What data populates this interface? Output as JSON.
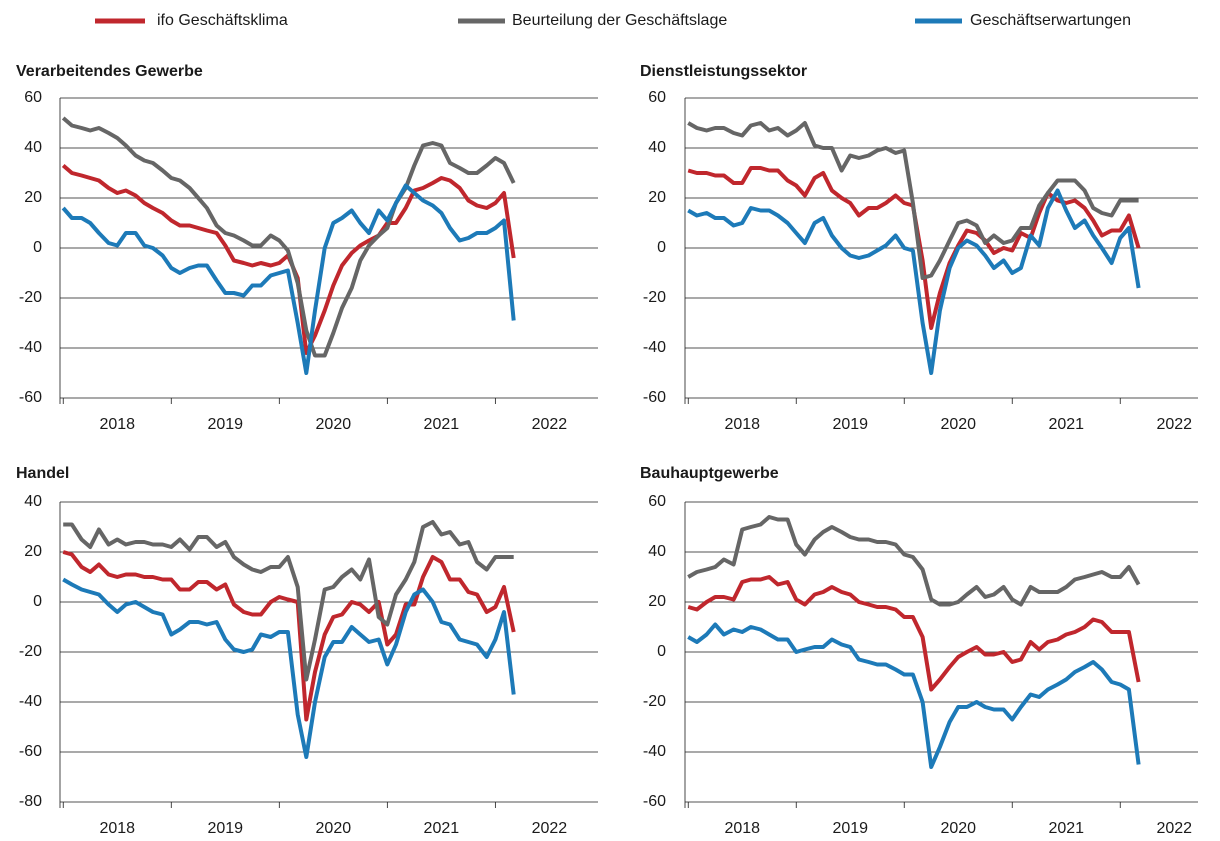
{
  "chart_data": [
    {
      "type": "line",
      "title": "Verarbeitendes Gewerbe",
      "x": [
        2018,
        2018.08,
        2018.17,
        2018.25,
        2018.33,
        2018.42,
        2018.5,
        2018.58,
        2018.67,
        2018.75,
        2018.83,
        2018.92,
        2019,
        2019.08,
        2019.17,
        2019.25,
        2019.33,
        2019.42,
        2019.5,
        2019.58,
        2019.67,
        2019.75,
        2019.83,
        2019.92,
        2020,
        2020.08,
        2020.17,
        2020.25,
        2020.33,
        2020.42,
        2020.5,
        2020.58,
        2020.67,
        2020.75,
        2020.83,
        2020.92,
        2021,
        2021.08,
        2021.17,
        2021.25,
        2021.33,
        2021.42,
        2021.5,
        2021.58,
        2021.67,
        2021.75,
        2021.83,
        2021.92,
        2022,
        2022.08,
        2022.17
      ],
      "xlim": [
        2017.97,
        2022.95
      ],
      "xticks": [
        2018,
        2019,
        2020,
        2021,
        2022
      ],
      "ylim": [
        -60,
        60
      ],
      "yticks": [
        -60,
        -40,
        -20,
        0,
        20,
        40,
        60
      ],
      "grid": true,
      "series": [
        {
          "name": "ifo Geschäftsklima",
          "color": "#c0272d",
          "values": [
            33,
            30,
            29,
            28,
            27,
            24,
            22,
            23,
            21,
            18,
            16,
            14,
            11,
            9,
            9,
            8,
            7,
            6,
            1,
            -5,
            -6,
            -7,
            -6,
            -7,
            -6,
            -3,
            -12,
            -42,
            -35,
            -25,
            -15,
            -7,
            -2,
            1,
            3,
            5,
            10,
            10,
            16,
            23,
            24,
            26,
            28,
            27,
            24,
            19,
            17,
            16,
            18,
            22,
            -4
          ]
        },
        {
          "name": "Beurteilung der Geschäftslage",
          "color": "#666666",
          "values": [
            52,
            49,
            48,
            47,
            48,
            46,
            44,
            41,
            37,
            35,
            34,
            31,
            28,
            27,
            24,
            20,
            16,
            9,
            6,
            5,
            3,
            1,
            1,
            5,
            3,
            -1,
            -14,
            -33,
            -43,
            -43,
            -34,
            -24,
            -16,
            -5,
            1,
            5,
            8,
            18,
            24,
            33,
            41,
            42,
            41,
            34,
            32,
            30,
            30,
            33,
            36,
            34,
            26
          ]
        },
        {
          "name": "Geschäftserwartungen",
          "color": "#1d7ab8",
          "values": [
            16,
            12,
            12,
            10,
            6,
            2,
            1,
            6,
            6,
            1,
            0,
            -3,
            -8,
            -10,
            -8,
            -7,
            -7,
            -13,
            -18,
            -18,
            -19,
            -15,
            -15,
            -11,
            -10,
            -9,
            -30,
            -50,
            -25,
            0,
            10,
            12,
            15,
            10,
            6,
            15,
            11,
            18,
            25,
            22,
            19,
            17,
            14,
            8,
            3,
            4,
            6,
            6,
            8,
            11,
            -29
          ]
        }
      ]
    },
    {
      "type": "line",
      "title": "Dienstleistungssektor",
      "x": [
        2018,
        2018.08,
        2018.17,
        2018.25,
        2018.33,
        2018.42,
        2018.5,
        2018.58,
        2018.67,
        2018.75,
        2018.83,
        2018.92,
        2019,
        2019.08,
        2019.17,
        2019.25,
        2019.33,
        2019.42,
        2019.5,
        2019.58,
        2019.67,
        2019.75,
        2019.83,
        2019.92,
        2020,
        2020.08,
        2020.17,
        2020.25,
        2020.33,
        2020.42,
        2020.5,
        2020.58,
        2020.67,
        2020.75,
        2020.83,
        2020.92,
        2021,
        2021.08,
        2021.17,
        2021.25,
        2021.33,
        2021.42,
        2021.5,
        2021.58,
        2021.67,
        2021.75,
        2021.83,
        2021.92,
        2022,
        2022.08,
        2022.17
      ],
      "xlim": [
        2017.97,
        2022.72
      ],
      "xticks": [
        2018,
        2019,
        2020,
        2021,
        2022
      ],
      "ylim": [
        -60,
        60
      ],
      "yticks": [
        -60,
        -40,
        -20,
        0,
        20,
        40,
        60
      ],
      "grid": true,
      "series": [
        {
          "name": "ifo Geschäftsklima",
          "color": "#c0272d",
          "values": [
            31,
            30,
            30,
            29,
            29,
            26,
            26,
            32,
            32,
            31,
            31,
            27,
            25,
            21,
            28,
            30,
            23,
            20,
            18,
            13,
            16,
            16,
            18,
            21,
            18,
            17,
            -5,
            -32,
            -18,
            -6,
            1,
            7,
            6,
            3,
            -2,
            0,
            -1,
            6,
            4,
            14,
            22,
            19,
            18,
            19,
            16,
            11,
            5,
            7,
            7,
            13,
            0
          ]
        },
        {
          "name": "Beurteilung der Geschäftslage",
          "color": "#666666",
          "values": [
            50,
            48,
            47,
            48,
            48,
            46,
            45,
            49,
            50,
            47,
            48,
            45,
            47,
            50,
            41,
            40,
            40,
            31,
            37,
            36,
            37,
            39,
            40,
            38,
            39,
            18,
            -12,
            -11,
            -5,
            3,
            10,
            11,
            9,
            2,
            5,
            2,
            3,
            8,
            8,
            17,
            22,
            27,
            27,
            27,
            23,
            16,
            14,
            13,
            19,
            19,
            19
          ]
        },
        {
          "name": "Geschäftserwartungen",
          "color": "#1d7ab8",
          "values": [
            15,
            13,
            14,
            12,
            12,
            9,
            10,
            16,
            15,
            15,
            13,
            10,
            6,
            2,
            10,
            12,
            5,
            0,
            -3,
            -4,
            -3,
            -1,
            1,
            5,
            0,
            -1,
            -30,
            -50,
            -25,
            -8,
            0,
            3,
            1,
            -3,
            -8,
            -5,
            -10,
            -8,
            5,
            1,
            16,
            23,
            15,
            8,
            11,
            5,
            0,
            -6,
            4,
            8,
            -16
          ]
        }
      ]
    },
    {
      "type": "line",
      "title": "Handel",
      "x": [
        2018,
        2018.08,
        2018.17,
        2018.25,
        2018.33,
        2018.42,
        2018.5,
        2018.58,
        2018.67,
        2018.75,
        2018.83,
        2018.92,
        2019,
        2019.08,
        2019.17,
        2019.25,
        2019.33,
        2019.42,
        2019.5,
        2019.58,
        2019.67,
        2019.75,
        2019.83,
        2019.92,
        2020,
        2020.08,
        2020.17,
        2020.25,
        2020.33,
        2020.42,
        2020.5,
        2020.58,
        2020.67,
        2020.75,
        2020.83,
        2020.92,
        2021,
        2021.08,
        2021.17,
        2021.25,
        2021.33,
        2021.42,
        2021.5,
        2021.58,
        2021.67,
        2021.75,
        2021.83,
        2021.92,
        2022,
        2022.08,
        2022.17
      ],
      "xlim": [
        2017.97,
        2022.95
      ],
      "xticks": [
        2018,
        2019,
        2020,
        2021,
        2022
      ],
      "ylim": [
        -80,
        40
      ],
      "yticks": [
        -80,
        -60,
        -40,
        -20,
        0,
        20,
        40
      ],
      "grid": true,
      "series": [
        {
          "name": "ifo Geschäftsklima",
          "color": "#c0272d",
          "values": [
            20,
            19,
            14,
            12,
            15,
            11,
            10,
            11,
            11,
            10,
            10,
            9,
            9,
            5,
            5,
            8,
            8,
            5,
            7,
            -1,
            -4,
            -5,
            -5,
            0,
            2,
            1,
            0,
            -47,
            -28,
            -13,
            -6,
            -5,
            0,
            -1,
            -4,
            0,
            -17,
            -13,
            -1,
            -1,
            10,
            18,
            16,
            9,
            9,
            4,
            3,
            -4,
            -2,
            6,
            -12
          ]
        },
        {
          "name": "Beurteilung der Geschäftslage",
          "color": "#666666",
          "values": [
            31,
            31,
            25,
            22,
            29,
            23,
            25,
            23,
            24,
            24,
            23,
            23,
            22,
            25,
            21,
            26,
            26,
            22,
            24,
            18,
            15,
            13,
            12,
            14,
            14,
            18,
            6,
            -31,
            -15,
            5,
            6,
            10,
            13,
            9,
            17,
            -6,
            -9,
            3,
            9,
            16,
            30,
            32,
            27,
            28,
            23,
            24,
            16,
            13,
            18,
            18,
            18
          ]
        },
        {
          "name": "Geschäftserwartungen",
          "color": "#1d7ab8",
          "values": [
            9,
            7,
            5,
            4,
            3,
            -1,
            -4,
            -1,
            0,
            -2,
            -4,
            -5,
            -13,
            -11,
            -8,
            -8,
            -9,
            -8,
            -15,
            -19,
            -20,
            -19,
            -13,
            -14,
            -12,
            -12,
            -45,
            -62,
            -40,
            -22,
            -16,
            -16,
            -10,
            -13,
            -16,
            -15,
            -25,
            -17,
            -4,
            3,
            5,
            0,
            -8,
            -9,
            -15,
            -16,
            -17,
            -22,
            -15,
            -4,
            -37
          ]
        }
      ]
    },
    {
      "type": "line",
      "title": "Bauhauptgewerbe",
      "x": [
        2018,
        2018.08,
        2018.17,
        2018.25,
        2018.33,
        2018.42,
        2018.5,
        2018.58,
        2018.67,
        2018.75,
        2018.83,
        2018.92,
        2019,
        2019.08,
        2019.17,
        2019.25,
        2019.33,
        2019.42,
        2019.5,
        2019.58,
        2019.67,
        2019.75,
        2019.83,
        2019.92,
        2020,
        2020.08,
        2020.17,
        2020.25,
        2020.33,
        2020.42,
        2020.5,
        2020.58,
        2020.67,
        2020.75,
        2020.83,
        2020.92,
        2021,
        2021.08,
        2021.17,
        2021.25,
        2021.33,
        2021.42,
        2021.5,
        2021.58,
        2021.67,
        2021.75,
        2021.83,
        2021.92,
        2022,
        2022.08,
        2022.17
      ],
      "xlim": [
        2017.97,
        2022.72
      ],
      "xticks": [
        2018,
        2019,
        2020,
        2021,
        2022
      ],
      "ylim": [
        -60,
        60
      ],
      "yticks": [
        -60,
        -40,
        -20,
        0,
        20,
        40,
        60
      ],
      "grid": true,
      "series": [
        {
          "name": "ifo Geschäftsklima",
          "color": "#c0272d",
          "values": [
            18,
            17,
            20,
            22,
            22,
            21,
            28,
            29,
            29,
            30,
            27,
            28,
            21,
            19,
            23,
            24,
            26,
            24,
            23,
            20,
            19,
            18,
            18,
            17,
            14,
            14,
            6,
            -15,
            -11,
            -6,
            -2,
            0,
            2,
            -1,
            -1,
            0,
            -4,
            -3,
            4,
            1,
            4,
            5,
            7,
            8,
            10,
            13,
            12,
            8,
            8,
            8,
            -12
          ]
        },
        {
          "name": "Beurteilung der Geschäftslage",
          "color": "#666666",
          "values": [
            30,
            32,
            33,
            34,
            37,
            35,
            49,
            50,
            51,
            54,
            53,
            53,
            43,
            39,
            45,
            48,
            50,
            48,
            46,
            45,
            45,
            44,
            44,
            43,
            39,
            38,
            33,
            21,
            19,
            19,
            20,
            23,
            26,
            22,
            23,
            26,
            21,
            19,
            26,
            24,
            24,
            24,
            26,
            29,
            30,
            31,
            32,
            30,
            30,
            34,
            27
          ]
        },
        {
          "name": "Geschäftserwartungen",
          "color": "#1d7ab8",
          "values": [
            6,
            4,
            7,
            11,
            7,
            9,
            8,
            10,
            9,
            7,
            5,
            5,
            0,
            1,
            2,
            2,
            5,
            3,
            2,
            -3,
            -4,
            -5,
            -5,
            -7,
            -9,
            -9,
            -20,
            -46,
            -38,
            -28,
            -22,
            -22,
            -20,
            -22,
            -23,
            -23,
            -27,
            -22,
            -17,
            -18,
            -15,
            -13,
            -11,
            -8,
            -6,
            -4,
            -7,
            -12,
            -13,
            -15,
            -45
          ]
        }
      ]
    }
  ]
}
